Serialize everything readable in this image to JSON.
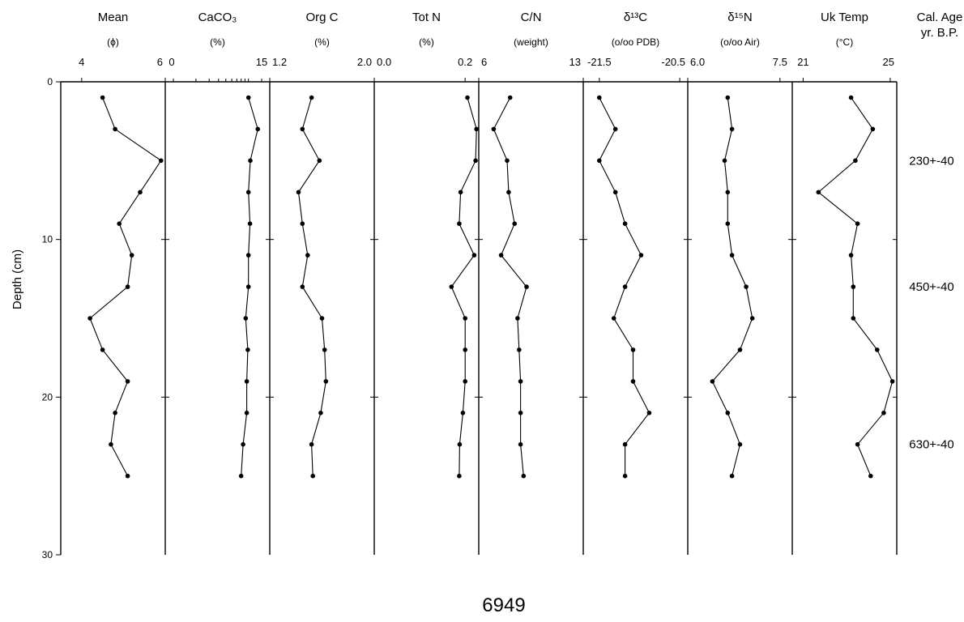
{
  "chart_data": {
    "type": "line",
    "core_id": "6949",
    "y_axis": {
      "label": "Depth (cm)",
      "range": [
        0,
        30
      ],
      "ticks": [
        "0",
        "10",
        "20",
        "30"
      ],
      "reversed": true
    },
    "age_header": "Cal. Age\nyr. B.P.",
    "ages": [
      {
        "label": "230+-40",
        "depth": 5
      },
      {
        "label": "450+-40",
        "depth": 13
      },
      {
        "label": "630+-40",
        "depth": 23
      }
    ],
    "depths": [
      1,
      3,
      5,
      7,
      9,
      11,
      13,
      15,
      17,
      19,
      21,
      23,
      25
    ],
    "panels": [
      {
        "name": "Mean",
        "unit": "(ϕ)",
        "xlim": [
          3.5,
          6
        ],
        "scale": "linear",
        "tick_labels": [
          {
            "v": 4,
            "t": "4"
          },
          {
            "v": 6,
            "t": "6"
          }
        ],
        "values": [
          4.5,
          4.8,
          5.9,
          5.4,
          4.9,
          5.2,
          5.1,
          4.2,
          4.5,
          5.1,
          4.8,
          4.7,
          5.1
        ]
      },
      {
        "name": "CaCO₃",
        "unit": "(%)",
        "xlim": [
          0,
          15
        ],
        "scale": "log",
        "tick_labels": [
          {
            "v": 0,
            "t": "0"
          },
          {
            "v": 15,
            "t": "15"
          }
        ],
        "values": [
          10,
          13.3,
          10.6,
          10,
          10.5,
          10,
          10,
          9.2,
          9.8,
          9.5,
          9.5,
          8.5,
          8
        ]
      },
      {
        "name": "Org C",
        "unit": "(%)",
        "xlim": [
          1.2,
          2.0
        ],
        "scale": "linear",
        "tick_labels": [
          {
            "v": 1.2,
            "t": "1.2"
          },
          {
            "v": 2.0,
            "t": "2.0"
          }
        ],
        "values": [
          1.52,
          1.45,
          1.58,
          1.42,
          1.45,
          1.49,
          1.45,
          1.6,
          1.62,
          1.63,
          1.59,
          1.52,
          1.53
        ]
      },
      {
        "name": "Tot N",
        "unit": "(%)",
        "xlim": [
          0.0,
          0.23
        ],
        "scale": "linear",
        "tick_labels": [
          {
            "v": 0.0,
            "t": "0.0"
          },
          {
            "v": 0.2,
            "t": "0.2"
          }
        ],
        "values": [
          0.205,
          0.225,
          0.223,
          0.19,
          0.187,
          0.22,
          0.17,
          0.2,
          0.2,
          0.2,
          0.195,
          0.188,
          0.187
        ]
      },
      {
        "name": "C/N",
        "unit": "(weight)",
        "xlim": [
          6,
          13
        ],
        "scale": "linear",
        "tick_labels": [
          {
            "v": 6,
            "t": "6"
          },
          {
            "v": 13,
            "t": "13"
          }
        ],
        "values": [
          8.1,
          7.0,
          7.9,
          8.0,
          8.4,
          7.5,
          9.2,
          8.6,
          8.7,
          8.8,
          8.8,
          8.8,
          9.0
        ]
      },
      {
        "name": "δ¹³C",
        "unit": "(o/oo PDB)",
        "xlim": [
          -21.7,
          -20.4
        ],
        "scale": "linear",
        "tick_labels": [
          {
            "v": -21.5,
            "t": "-21.5"
          },
          {
            "v": -20.5,
            "t": "-20.5"
          }
        ],
        "values": [
          -21.5,
          -21.3,
          -21.5,
          -21.3,
          -21.18,
          -20.98,
          -21.18,
          -21.32,
          -21.08,
          -21.08,
          -20.88,
          -21.18,
          -21.18
        ]
      },
      {
        "name": "δ¹⁵N",
        "unit": "(o/oo Air)",
        "xlim": [
          6.0,
          7.7
        ],
        "scale": "linear",
        "tick_labels": [
          {
            "v": 6.0,
            "t": "6.0"
          },
          {
            "v": 7.5,
            "t": "7.5"
          }
        ],
        "values": [
          6.65,
          6.72,
          6.6,
          6.65,
          6.65,
          6.72,
          6.95,
          7.05,
          6.85,
          6.4,
          6.65,
          6.85,
          6.72
        ]
      },
      {
        "name": "Uk Temp",
        "unit": "(°C)",
        "xlim": [
          20.5,
          25.3
        ],
        "scale": "linear",
        "tick_labels": [
          {
            "v": 21,
            "t": "21"
          },
          {
            "v": 25,
            "t": "25"
          }
        ],
        "values": [
          23.2,
          24.2,
          23.4,
          21.7,
          23.5,
          23.2,
          23.3,
          23.3,
          24.4,
          25.1,
          24.7,
          23.5,
          24.1
        ]
      }
    ]
  }
}
